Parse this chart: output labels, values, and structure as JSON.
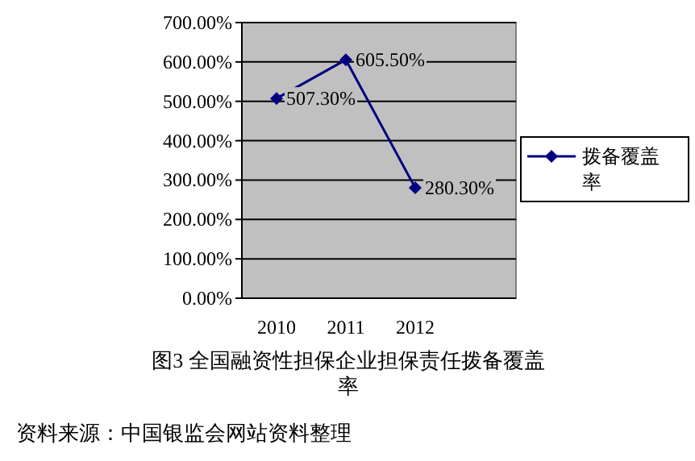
{
  "chart_data": {
    "type": "line",
    "title": "图3 全国融资性担保企业担保责任拨备覆盖率",
    "annotations": [
      "资料来源：中国银监会网站资料整理"
    ],
    "categories": [
      "2010",
      "2011",
      "2012"
    ],
    "series": [
      {
        "name": "拨备覆盖率",
        "color": "#000080",
        "values": [
          507.3,
          605.5,
          280.3
        ],
        "value_labels": [
          "507.30%",
          "605.50%",
          "280.30%"
        ]
      }
    ],
    "ylim": [
      0,
      700
    ],
    "yticks": [
      {
        "value": 0,
        "label": "0.00%"
      },
      {
        "value": 100,
        "label": "100.00%"
      },
      {
        "value": 200,
        "label": "200.00%"
      },
      {
        "value": 300,
        "label": "300.00%"
      },
      {
        "value": 400,
        "label": "400.00%"
      },
      {
        "value": 500,
        "label": "500.00%"
      },
      {
        "value": 600,
        "label": "600.00%"
      },
      {
        "value": 700,
        "label": "700.00%"
      }
    ],
    "grid": "y",
    "legend": "right",
    "marker": "diamond",
    "line_style": "solid"
  }
}
